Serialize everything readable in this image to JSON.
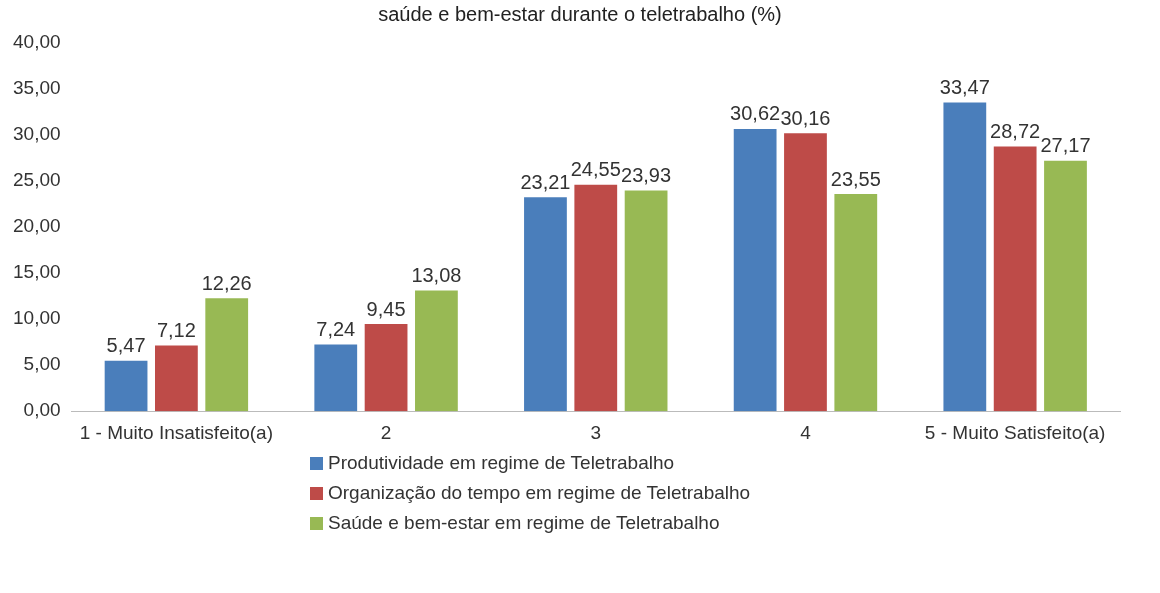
{
  "chart_data": {
    "type": "bar",
    "title": "saúde e bem-estar durante o teletrabalho (%)",
    "categories": [
      "1 - Muito Insatisfeito(a)",
      "2",
      "3",
      "4",
      "5 - Muito Satisfeito(a)"
    ],
    "series": [
      {
        "name": "Produtividade em regime de Teletrabalho",
        "color": "#4a7ebb",
        "values": [
          5.47,
          7.24,
          23.21,
          30.62,
          33.47
        ],
        "value_labels": [
          "5,47",
          "7,24",
          "23,21",
          "30,62",
          "33,47"
        ]
      },
      {
        "name": "Organização do tempo em regime de Teletrabalho",
        "color": "#be4b48",
        "values": [
          7.12,
          9.45,
          24.55,
          30.16,
          28.72
        ],
        "value_labels": [
          "7,12",
          "9,45",
          "24,55",
          "30,16",
          "28,72"
        ]
      },
      {
        "name": "Saúde e bem-estar em regime de Teletrabalho",
        "color": "#98b954",
        "values": [
          12.26,
          13.08,
          23.93,
          23.55,
          27.17
        ],
        "value_labels": [
          "12,26",
          "13,08",
          "23,93",
          "23,55",
          "27,17"
        ]
      }
    ],
    "ylim": [
      0,
      40
    ],
    "yticks": [
      {
        "value": 0,
        "label": "0,00"
      },
      {
        "value": 5,
        "label": "5,00"
      },
      {
        "value": 10,
        "label": "10,00"
      },
      {
        "value": 15,
        "label": "15,00"
      },
      {
        "value": 20,
        "label": "20,00"
      },
      {
        "value": 25,
        "label": "25,00"
      },
      {
        "value": 30,
        "label": "30,00"
      },
      {
        "value": 35,
        "label": "35,00"
      },
      {
        "value": 40,
        "label": "40,00"
      }
    ],
    "grid": false,
    "legend": "bottom"
  }
}
